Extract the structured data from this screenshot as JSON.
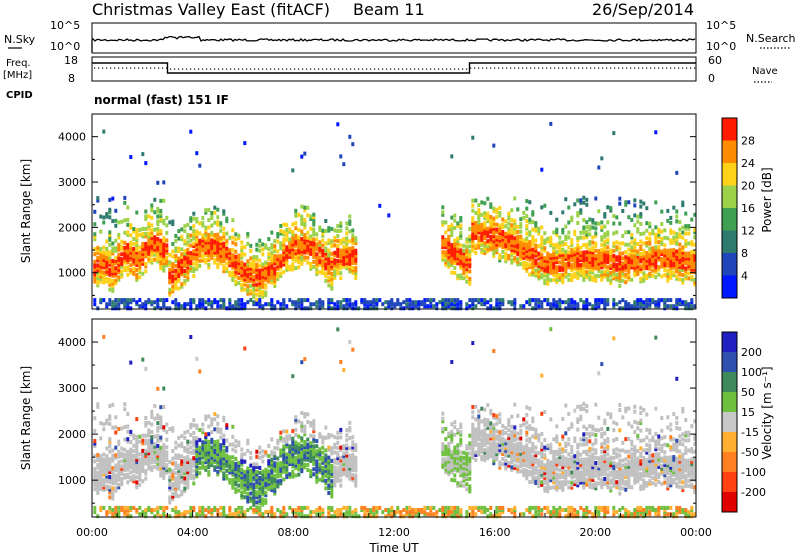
{
  "header": {
    "station": "Christmas Valley East (fitACF)",
    "beam": "Beam 11",
    "date": "26/Sep/2014"
  },
  "summary_panels": {
    "nsky_label": "N.Sky",
    "nsky_ticks": [
      "10^5",
      "10^0"
    ],
    "nsearch_label": "N.Search",
    "nsearch_ticks": [
      "10^5",
      "10^0"
    ],
    "freq_label_line1": "Freq.",
    "freq_label_line2": "[MHz]",
    "freq_ticks": [
      "18",
      "8"
    ],
    "nave_label": "Nave",
    "nave_ticks": [
      "60",
      "0"
    ],
    "cpid_label": "CPID",
    "cpid_text": "normal (fast) 151 IF"
  },
  "colors": {
    "frame": "#000000",
    "ground_scatter": "#c0c0c0"
  },
  "chart_data": [
    {
      "type": "heatmap",
      "name": "power",
      "ylabel": "Slant Range [km]",
      "xlabel": "",
      "ylim": [
        200,
        4500
      ],
      "xlim": [
        0,
        24
      ],
      "yticks": [
        {
          "value": 1000,
          "label": "1000"
        },
        {
          "value": 2000,
          "label": "2000"
        },
        {
          "value": 3000,
          "label": "3000"
        },
        {
          "value": 4000,
          "label": "4000"
        }
      ],
      "colorbar": {
        "label": "Power [dB]",
        "min": 0,
        "max": 32,
        "ticks": [
          {
            "value": 4,
            "label": "4"
          },
          {
            "value": 8,
            "label": "8"
          },
          {
            "value": 12,
            "label": "12"
          },
          {
            "value": 16,
            "label": "16"
          },
          {
            "value": 20,
            "label": "20"
          },
          {
            "value": 24,
            "label": "24"
          },
          {
            "value": 28,
            "label": "28"
          }
        ],
        "colors": [
          "#0018ff",
          "#1f45b8",
          "#2f7a6e",
          "#3f9f52",
          "#9bd24a",
          "#ffd21a",
          "#ff8c00",
          "#ff1a00"
        ]
      }
    },
    {
      "type": "heatmap",
      "name": "velocity",
      "ylabel": "Slant Range [km]",
      "xlabel": "Time UT",
      "ylim": [
        200,
        4500
      ],
      "xlim": [
        0,
        24
      ],
      "xticks": [
        {
          "value": 0,
          "label": "00:00"
        },
        {
          "value": 4,
          "label": "04:00"
        },
        {
          "value": 8,
          "label": "08:00"
        },
        {
          "value": 12,
          "label": "12:00"
        },
        {
          "value": 16,
          "label": "16:00"
        },
        {
          "value": 20,
          "label": "20:00"
        },
        {
          "value": 24,
          "label": "00:00"
        }
      ],
      "yticks": [
        {
          "value": 1000,
          "label": "1000"
        },
        {
          "value": 2000,
          "label": "2000"
        },
        {
          "value": 3000,
          "label": "3000"
        },
        {
          "value": 4000,
          "label": "4000"
        }
      ],
      "colorbar": {
        "label": "Velocity [m s⁻¹]",
        "ticks": [
          {
            "pos": 1,
            "label": "200"
          },
          {
            "pos": 2,
            "label": "100"
          },
          {
            "pos": 3,
            "label": "50"
          },
          {
            "pos": 4,
            "label": "15"
          },
          {
            "pos": 5,
            "label": "-15"
          },
          {
            "pos": 6,
            "label": "-50"
          },
          {
            "pos": 7,
            "label": "-100"
          },
          {
            "pos": 8,
            "label": "-200"
          }
        ],
        "colors": [
          "#2020c0",
          "#3050b0",
          "#3f8a5a",
          "#70c040",
          "#c8c8c8",
          "#ffb030",
          "#ff8020",
          "#ff4010",
          "#e00000"
        ]
      }
    }
  ]
}
